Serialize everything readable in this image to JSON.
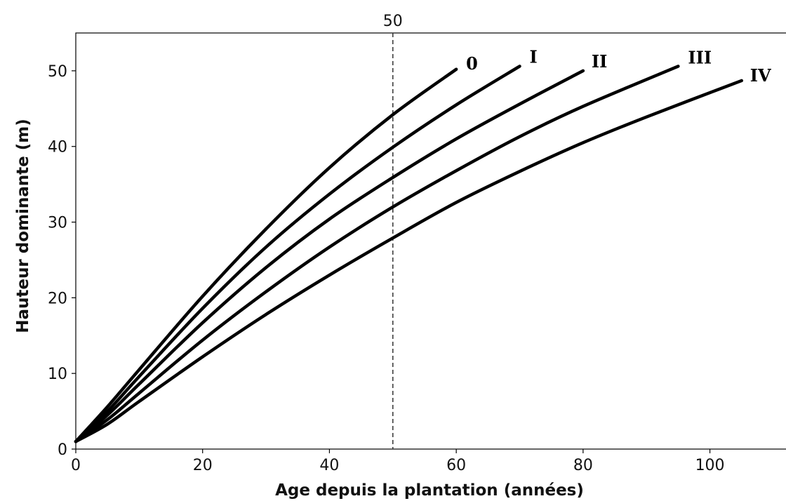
{
  "chart_data": {
    "type": "line",
    "title": "",
    "xlabel": "Age depuis la plantation (années)",
    "ylabel": "Hauteur dominante (m)",
    "xlim": [
      0,
      112
    ],
    "ylim": [
      0,
      55
    ],
    "x_ticks": [
      0,
      20,
      40,
      60,
      80,
      100
    ],
    "y_ticks": [
      0,
      10,
      20,
      30,
      40,
      50
    ],
    "grid": false,
    "legend": "none",
    "reference_line": {
      "x": 50,
      "label": "50",
      "style": "dashed"
    },
    "series": [
      {
        "name": "0",
        "x": [
          0,
          5,
          10,
          20,
          30,
          40,
          50,
          60
        ],
        "y": [
          1,
          5.6,
          10.5,
          20.2,
          29.1,
          37.2,
          44.2,
          50.2
        ]
      },
      {
        "name": "I",
        "x": [
          0,
          5,
          10,
          20,
          30,
          40,
          50,
          60,
          70
        ],
        "y": [
          1,
          5.0,
          9.6,
          18.6,
          26.7,
          33.7,
          39.9,
          45.5,
          50.6
        ]
      },
      {
        "name": "II",
        "x": [
          0,
          5,
          10,
          20,
          30,
          40,
          50,
          60,
          70,
          80
        ],
        "y": [
          1,
          4.5,
          8.6,
          16.7,
          24.0,
          30.4,
          35.9,
          41.0,
          45.6,
          50.0
        ]
      },
      {
        "name": "III",
        "x": [
          0,
          5,
          10,
          20,
          30,
          40,
          50,
          60,
          70,
          80,
          95
        ],
        "y": [
          1,
          3.9,
          7.4,
          14.4,
          20.8,
          26.7,
          32.0,
          36.8,
          41.3,
          45.3,
          50.6
        ]
      },
      {
        "name": "IV",
        "x": [
          0,
          5,
          10,
          20,
          30,
          40,
          50,
          60,
          70,
          80,
          90,
          105
        ],
        "y": [
          1,
          3.3,
          6.3,
          12.2,
          17.8,
          23.0,
          27.9,
          32.6,
          36.7,
          40.5,
          43.9,
          48.7
        ]
      }
    ]
  }
}
